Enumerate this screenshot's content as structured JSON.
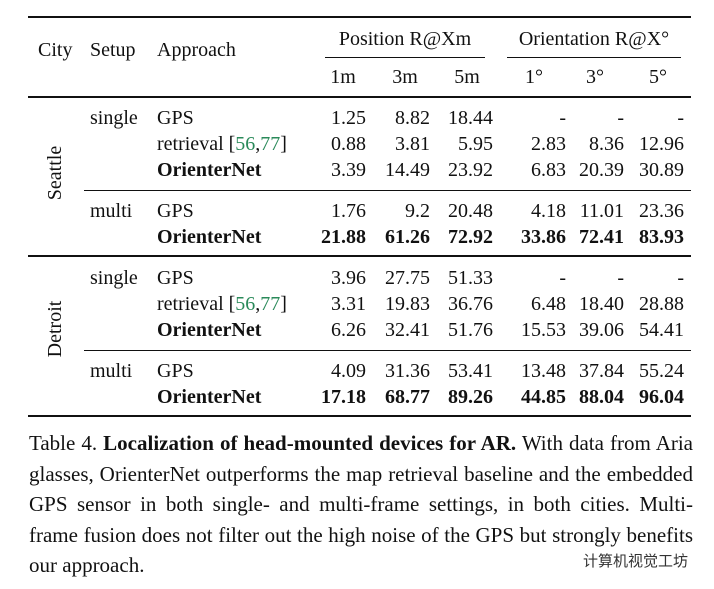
{
  "table": {
    "header": {
      "city": "City",
      "setup": "Setup",
      "approach": "Approach",
      "position": "Position R@Xm",
      "orientation": "Orientation R@X°",
      "position_sub": [
        "1m",
        "3m",
        "5m"
      ],
      "orientation_sub": [
        "1°",
        "3°",
        "5°"
      ]
    },
    "groups": [
      {
        "city": "Seattle",
        "setups": [
          {
            "setup": "single",
            "rows": [
              {
                "approach": "GPS",
                "values": [
                  "1.25",
                  "8.82",
                  "18.44",
                  "-",
                  "-",
                  "-"
                ]
              },
              {
                "approach": "retrieval",
                "citation": {
                  "open": "[",
                  "refs": [
                    "56",
                    "77"
                  ],
                  "sep": ",",
                  "close": "]"
                },
                "values": [
                  "0.88",
                  "3.81",
                  "5.95",
                  "2.83",
                  "8.36",
                  "12.96"
                ]
              },
              {
                "approach": "OrienterNet",
                "bold_name": true,
                "values": [
                  "3.39",
                  "14.49",
                  "23.92",
                  "6.83",
                  "20.39",
                  "30.89"
                ]
              }
            ]
          },
          {
            "setup": "multi",
            "rows": [
              {
                "approach": "GPS",
                "values": [
                  "1.76",
                  "9.2",
                  "20.48",
                  "4.18",
                  "11.01",
                  "23.36"
                ]
              },
              {
                "approach": "OrienterNet",
                "bold_name": true,
                "bold_values": true,
                "values": [
                  "21.88",
                  "61.26",
                  "72.92",
                  "33.86",
                  "72.41",
                  "83.93"
                ]
              }
            ]
          }
        ]
      },
      {
        "city": "Detroit",
        "setups": [
          {
            "setup": "single",
            "rows": [
              {
                "approach": "GPS",
                "values": [
                  "3.96",
                  "27.75",
                  "51.33",
                  "-",
                  "-",
                  "-"
                ]
              },
              {
                "approach": "retrieval",
                "citation": {
                  "open": "[",
                  "refs": [
                    "56",
                    "77"
                  ],
                  "sep": ",",
                  "close": "]"
                },
                "values": [
                  "3.31",
                  "19.83",
                  "36.76",
                  "6.48",
                  "18.40",
                  "28.88"
                ]
              },
              {
                "approach": "OrienterNet",
                "bold_name": true,
                "values": [
                  "6.26",
                  "32.41",
                  "51.76",
                  "15.53",
                  "39.06",
                  "54.41"
                ]
              }
            ]
          },
          {
            "setup": "multi",
            "rows": [
              {
                "approach": "GPS",
                "values": [
                  "4.09",
                  "31.36",
                  "53.41",
                  "13.48",
                  "37.84",
                  "55.24"
                ]
              },
              {
                "approach": "OrienterNet",
                "bold_name": true,
                "bold_values": true,
                "values": [
                  "17.18",
                  "68.77",
                  "89.26",
                  "44.85",
                  "88.04",
                  "96.04"
                ]
              }
            ]
          }
        ]
      }
    ]
  },
  "caption": {
    "label": "Table 4.",
    "title": "Localization of head-mounted devices for AR.",
    "text": "With data from Aria glasses, OrienterNet outperforms the map retrieval baseline and the embedded GPS sensor in both single- and multi-frame settings, in both cities. Multi-frame fusion does not filter out the high noise of the GPS but strongly benefits our approach."
  },
  "watermark": "计算机视觉工坊"
}
